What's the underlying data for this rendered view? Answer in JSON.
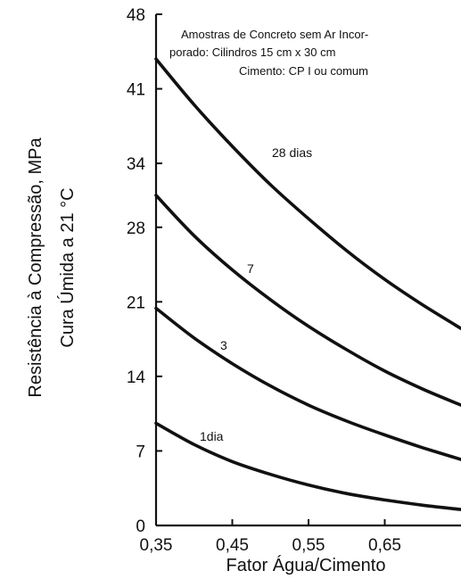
{
  "chart_data": {
    "type": "line",
    "title": "",
    "annotation": [
      "Amostras de Concreto sem Ar Incor-",
      "porado: Cilindros 15 cm x 30 cm",
      "Cimento: CP I ou comum"
    ],
    "xlabel": "Fator Água/Cimento",
    "ylabel": [
      "Resistência à Compressão, MPa",
      "Cura Úmida a 21 °C"
    ],
    "xlim": [
      0.35,
      0.75
    ],
    "ylim": [
      0,
      48
    ],
    "x_ticks": [
      0.35,
      0.45,
      0.55,
      0.65
    ],
    "x_tick_labels": [
      "0,35",
      "0,45",
      "0,55",
      "0,65"
    ],
    "y_ticks": [
      0,
      7,
      14,
      21,
      28,
      34,
      41,
      48
    ],
    "y_tick_labels": [
      "0",
      "7",
      "14",
      "21",
      "28",
      "34",
      "41",
      "48"
    ],
    "grid": false,
    "series": [
      {
        "name": "28 dias",
        "x": [
          0.35,
          0.4,
          0.45,
          0.5,
          0.55,
          0.6,
          0.65,
          0.7,
          0.75
        ],
        "y": [
          43.8,
          39.5,
          35.6,
          32.0,
          28.8,
          25.8,
          23.1,
          20.7,
          18.5
        ]
      },
      {
        "name": "7",
        "x": [
          0.35,
          0.4,
          0.45,
          0.5,
          0.55,
          0.6,
          0.65,
          0.7,
          0.75
        ],
        "y": [
          31.0,
          27.2,
          24.0,
          21.2,
          18.7,
          16.5,
          14.5,
          12.8,
          11.3
        ]
      },
      {
        "name": "3",
        "x": [
          0.35,
          0.4,
          0.45,
          0.5,
          0.55,
          0.6,
          0.65,
          0.7,
          0.75
        ],
        "y": [
          20.4,
          17.6,
          15.2,
          13.1,
          11.3,
          9.8,
          8.5,
          7.3,
          6.2
        ]
      },
      {
        "name": "1dia",
        "x": [
          0.35,
          0.4,
          0.45,
          0.5,
          0.55,
          0.6,
          0.65,
          0.7,
          0.75
        ],
        "y": [
          9.6,
          7.6,
          6.0,
          4.8,
          3.8,
          3.0,
          2.4,
          1.9,
          1.5
        ]
      }
    ]
  }
}
